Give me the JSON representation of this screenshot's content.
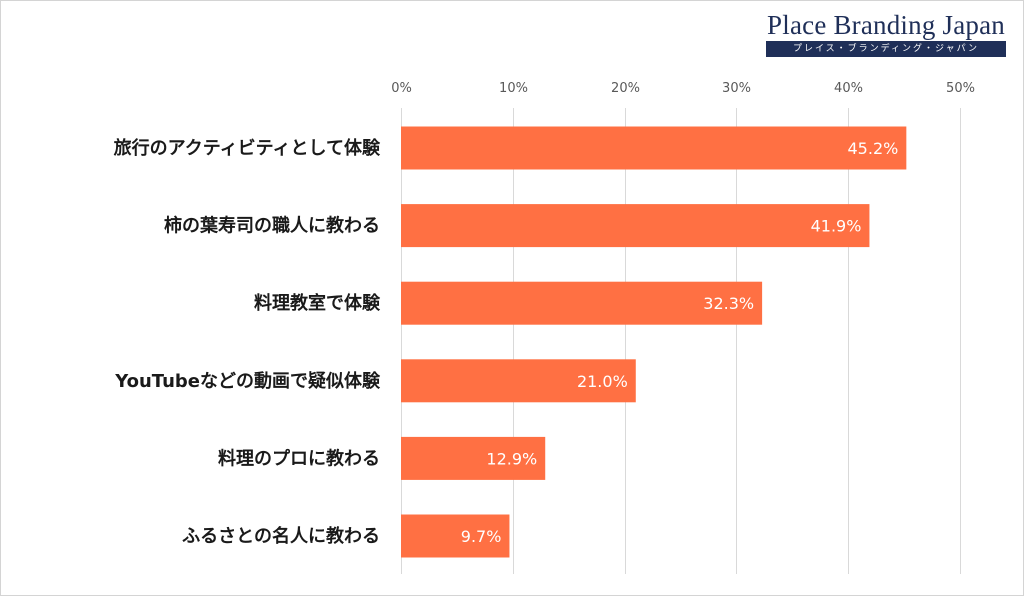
{
  "logo": {
    "title": "Place Branding Japan",
    "subtitle": "プレイス・ブランディング・ジャパン"
  },
  "colors": {
    "bar": "#ff7043",
    "grid": "#d9d9d9",
    "brand": "#1f2f58"
  },
  "chart_data": {
    "type": "bar",
    "orientation": "horizontal",
    "categories": [
      "旅行のアクティビティとして体験",
      "柿の葉寿司の職人に教わる",
      "料理教室で体験",
      "YouTubeなどの動画で疑似体験",
      "料理のプロに教わる",
      "ふるさとの名人に教わる"
    ],
    "values": [
      45.2,
      41.9,
      32.3,
      21.0,
      12.9,
      9.7
    ],
    "value_labels": [
      "45.2%",
      "41.9%",
      "32.3%",
      "21.0%",
      "12.9%",
      "9.7%"
    ],
    "x_ticks": [
      0,
      10,
      20,
      30,
      40,
      50
    ],
    "x_tick_labels": [
      "0%",
      "10%",
      "20%",
      "30%",
      "40%",
      "50%"
    ],
    "xlim": [
      0,
      50
    ],
    "x_axis_position": "top",
    "grid": true,
    "legend": "none",
    "title": "",
    "xlabel": "",
    "ylabel": ""
  }
}
